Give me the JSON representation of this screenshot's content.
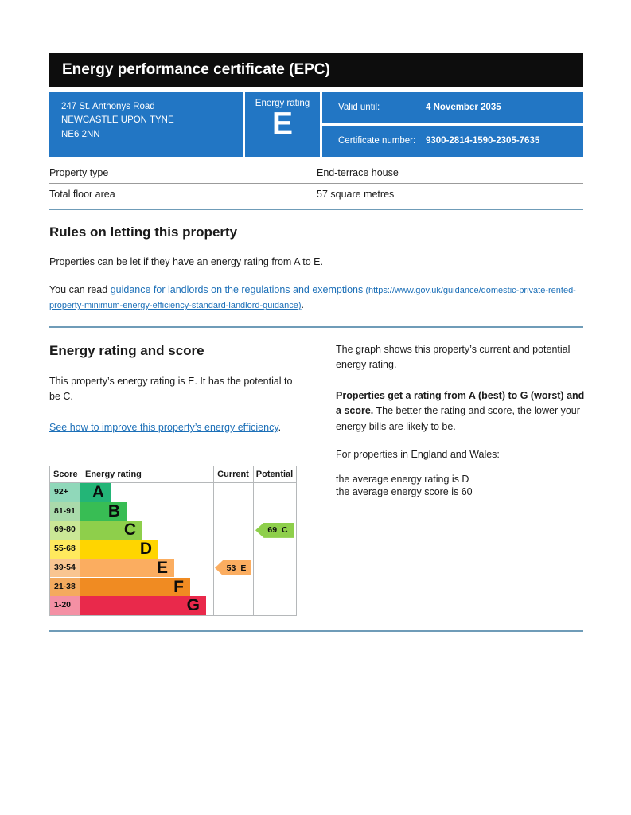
{
  "title_bar": {
    "text": "Energy performance certificate (EPC)"
  },
  "summary": {
    "address_lines": [
      "247 St. Anthonys Road",
      "NEWCASTLE UPON TYNE",
      "NE6 2NN"
    ],
    "energy_rating_label": "Energy rating",
    "energy_rating_value": "E",
    "valid_until_label": "Valid until:",
    "valid_until_value": "4 November 2035",
    "certificate_number_label": "Certificate number:",
    "certificate_number_value": "9300-2814-1590-2305-7635"
  },
  "property_facts": {
    "rows": [
      {
        "label": "Property type",
        "value": "End-terrace house"
      },
      {
        "label": "Total floor area",
        "value": "57 square metres"
      }
    ]
  },
  "rules": {
    "heading": "Rules on letting this property",
    "para1": "Properties can be let if they have an energy rating from A to E.",
    "para2_prefix": "You can read ",
    "link_text": "guidance for landlords on the regulations and exemptions",
    "link_url": " (https://www.gov.uk/guidance/domestic-private-rented-property-minimum-energy-efficiency-standard-landlord-guidance)",
    "para2_suffix": "."
  },
  "rating_section": {
    "heading": "Energy rating and score",
    "left_para": "This property’s energy rating is E. It has the potential to be C.",
    "improve_link": "See how to improve this property’s energy efficiency",
    "improve_suffix": ".",
    "right_para1": "The graph shows this property’s current and potential energy rating.",
    "right_para2_bold": "Properties get a rating from A (best) to G (worst) and a score.",
    "right_para2_rest": " The better the rating and score, the lower your energy bills are likely to be.",
    "right_para3": "For properties in England and Wales:",
    "right_line1": "the average energy rating is D",
    "right_line2": "the average energy score is 60"
  },
  "chart_data": {
    "type": "bar",
    "title": "Energy rating and score",
    "columns": [
      "Score",
      "Energy rating",
      "Current",
      "Potential"
    ],
    "bands": [
      {
        "range": "92+",
        "letter": "A",
        "color": "#23b577",
        "tint_color": "#90d8ba"
      },
      {
        "range": "81-91",
        "letter": "B",
        "color": "#38bd54",
        "tint_color": "#aadaab"
      },
      {
        "range": "69-80",
        "letter": "C",
        "color": "#8ecf4b",
        "tint_color": "#cae796"
      },
      {
        "range": "55-68",
        "letter": "D",
        "color": "#ffd500",
        "tint_color": "#ffe95d"
      },
      {
        "range": "39-54",
        "letter": "E",
        "color": "#fbad60",
        "tint_color": "#f9c591"
      },
      {
        "range": "21-38",
        "letter": "F",
        "color": "#f08b22",
        "tint_color": "#f4aa5e"
      },
      {
        "range": "1-20",
        "letter": "G",
        "color": "#e9294b",
        "tint_color": "#f490a4"
      }
    ],
    "current": {
      "score": "53",
      "letter": "E",
      "band_index": 4
    },
    "potential": {
      "score": "69",
      "letter": "C",
      "band_index": 2
    }
  }
}
